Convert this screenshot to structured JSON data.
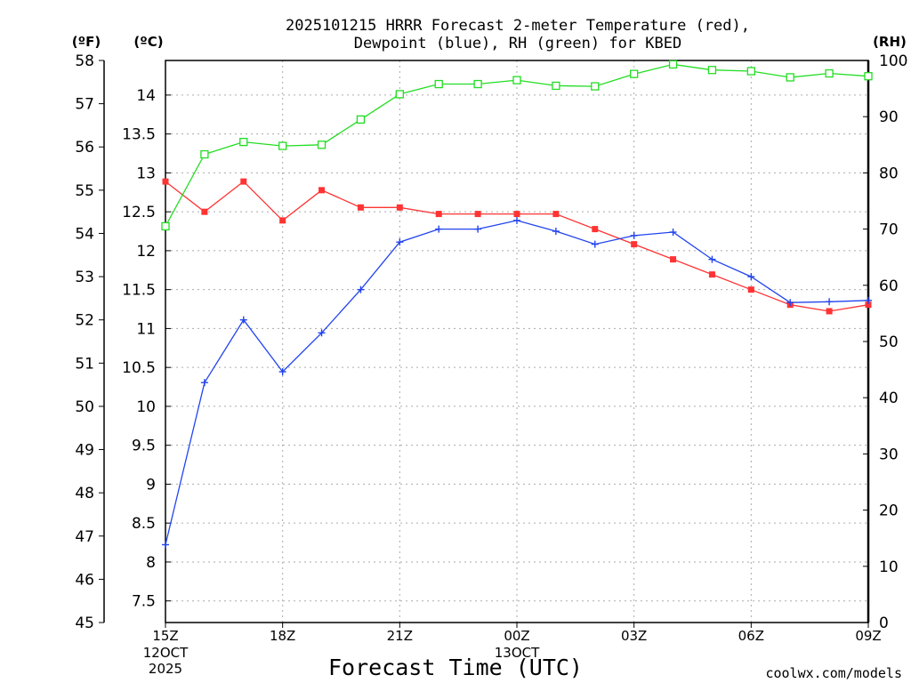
{
  "title": {
    "line1": "2025101215 HRRR Forecast 2-meter Temperature (red),",
    "line2": "Dewpoint (blue), RH (green) for KBED"
  },
  "units": {
    "fahrenheit": "(ºF)",
    "celsius": "(ºC)",
    "rh": "(RH)"
  },
  "xlabel": "Forecast Time (UTC)",
  "credit": "coolwx.com/models",
  "colors": {
    "temperature": "#ff3333",
    "dewpoint": "#2244ee",
    "rh": "#22dd22",
    "credit": "#ee3333",
    "grid": "#aaaaaa"
  },
  "chart_data": {
    "type": "line",
    "title": "2025101215 HRRR Forecast 2-meter Temperature (red), Dewpoint (blue), RH (green) for KBED",
    "xlabel": "Forecast Time (UTC)",
    "x": [
      "15Z",
      "16Z",
      "17Z",
      "18Z",
      "19Z",
      "20Z",
      "21Z",
      "22Z",
      "23Z",
      "00Z",
      "01Z",
      "02Z",
      "03Z",
      "04Z",
      "05Z",
      "06Z",
      "07Z",
      "08Z",
      "09Z"
    ],
    "x_ticks": [
      {
        "index": 0,
        "label": "15Z",
        "sub1": "12OCT",
        "sub2": "2025"
      },
      {
        "index": 3,
        "label": "18Z"
      },
      {
        "index": 6,
        "label": "21Z"
      },
      {
        "index": 9,
        "label": "00Z",
        "sub1": "13OCT"
      },
      {
        "index": 12,
        "label": "03Z"
      },
      {
        "index": 15,
        "label": "06Z"
      },
      {
        "index": 18,
        "label": "09Z"
      }
    ],
    "y_left_f": {
      "label": "(ºF)",
      "range": [
        45,
        58
      ],
      "ticks": [
        45,
        46,
        47,
        48,
        49,
        50,
        51,
        52,
        53,
        54,
        55,
        56,
        57,
        58
      ]
    },
    "y_left_c": {
      "label": "(ºC)",
      "ticks": [
        7.5,
        8,
        8.5,
        9,
        9.5,
        10,
        10.5,
        11,
        11.5,
        12,
        12.5,
        13,
        13.5,
        14
      ]
    },
    "y_right": {
      "label": "(RH)",
      "range": [
        0,
        100
      ],
      "ticks": [
        0,
        10,
        20,
        30,
        40,
        50,
        60,
        70,
        80,
        90,
        100
      ]
    },
    "series": [
      {
        "name": "Temperature (°F)",
        "axis": "left",
        "marker": "filled-square",
        "values": [
          55.2,
          54.5,
          55.2,
          54.3,
          55.0,
          54.6,
          54.6,
          54.45,
          54.45,
          54.45,
          54.45,
          54.1,
          53.75,
          53.4,
          53.05,
          52.7,
          52.35,
          52.2,
          52.35
        ]
      },
      {
        "name": "Dewpoint (°F)",
        "axis": "left",
        "marker": "plus",
        "values": [
          46.8,
          50.55,
          52.0,
          50.8,
          51.7,
          52.7,
          53.8,
          54.1,
          54.1,
          54.3,
          54.05,
          53.75,
          53.95,
          54.03,
          53.4,
          53.0,
          52.4,
          52.42,
          52.45
        ]
      },
      {
        "name": "RH (%)",
        "axis": "right",
        "marker": "open-square",
        "values": [
          70.5,
          83.3,
          85.5,
          84.8,
          85.0,
          89.5,
          94.0,
          95.8,
          95.8,
          96.5,
          95.5,
          95.4,
          97.6,
          99.3,
          98.3,
          98.1,
          97.0,
          97.7,
          97.2
        ]
      }
    ]
  }
}
